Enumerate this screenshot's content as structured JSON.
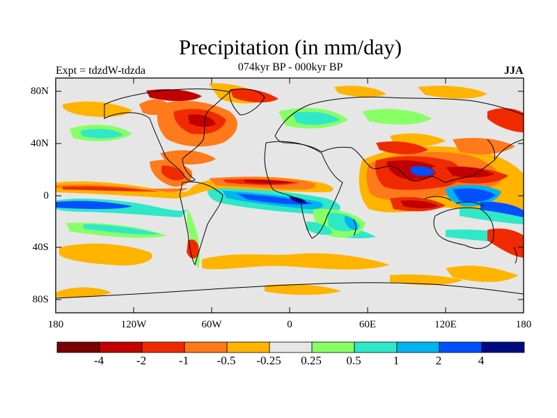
{
  "title": "Precipitation (in mm/day)",
  "subtitle": "074kyr BP - 000kyr BP",
  "left_label": "Expt = tdzdW-tdzda",
  "right_label": "JJA",
  "lat_ticks": [
    "80N",
    "40N",
    "0",
    "40S",
    "80S"
  ],
  "lon_ticks": [
    "180",
    "120W",
    "60W",
    "0",
    "60E",
    "120E",
    "180"
  ],
  "colorbar": {
    "colors": [
      "#7a0000",
      "#c20000",
      "#f02a00",
      "#ff7a1a",
      "#ffb400",
      "#e6e6e6",
      "#88ff66",
      "#2fe8c8",
      "#00b4f0",
      "#0050ff",
      "#000a80"
    ],
    "labels": [
      "-4",
      "-2",
      "-1",
      "-0.5",
      "-0.25",
      "0.25",
      "0.5",
      "1",
      "2",
      "4"
    ]
  },
  "colors": {
    "background": "#e6e6e6",
    "frame": "#000000"
  }
}
